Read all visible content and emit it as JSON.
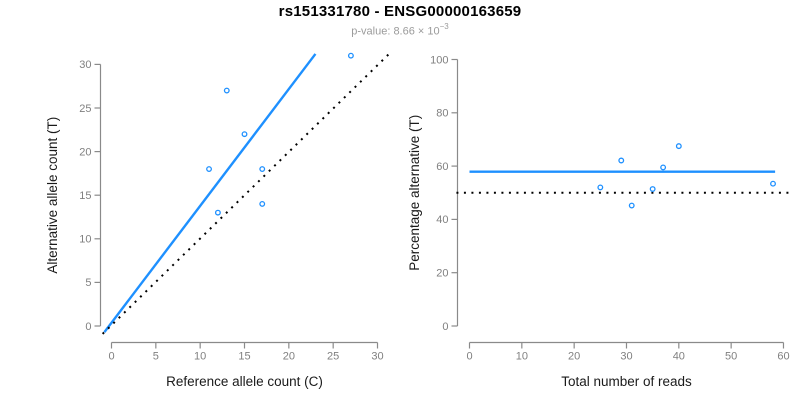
{
  "title": "rs151331780 - ENSG00000163659",
  "subtitle": {
    "text": "p-value: 8.66 × 10",
    "exponent": "−3"
  },
  "colors": {
    "accent_blue": "#1E90FF",
    "axis_line": "#8a8a8a",
    "tick_label": "#808080",
    "axis_title": "#1a1a1a",
    "title": "#000000",
    "subtitle": "#9b9b9b",
    "dotted_line": "#000000"
  },
  "chart_data": [
    {
      "type": "scatter",
      "position": "left",
      "xlabel": "Reference allele count (C)",
      "ylabel": "Alternative allele count (T)",
      "xticks": [
        0,
        5,
        10,
        15,
        20,
        25,
        30
      ],
      "yticks": [
        0,
        5,
        10,
        15,
        20,
        25,
        30
      ],
      "xlim": [
        -1.25,
        32.25
      ],
      "ylim": [
        -1.25,
        32.25
      ],
      "grid": false,
      "points": [
        [
          27,
          31
        ],
        [
          13,
          27
        ],
        [
          15,
          22
        ],
        [
          11,
          18
        ],
        [
          17,
          18
        ],
        [
          17,
          14
        ],
        [
          12,
          13
        ]
      ],
      "lines": [
        {
          "name": "fit-line",
          "style": "solid",
          "color": "blue",
          "from": [
            -0.8,
            -0.7
          ],
          "to": [
            23.0,
            31.2
          ]
        },
        {
          "name": "identity-line",
          "style": "dotted",
          "color": "black",
          "from": [
            -1.0,
            -0.9
          ],
          "to": [
            31.4,
            31.3
          ]
        }
      ]
    },
    {
      "type": "scatter",
      "position": "right",
      "xlabel": "Total number of reads",
      "ylabel": "Percentage alternative (T)",
      "xticks": [
        0,
        10,
        20,
        30,
        40,
        50,
        60
      ],
      "yticks": [
        0,
        20,
        40,
        60,
        80,
        100
      ],
      "xlim": [
        -2.5,
        62.5
      ],
      "ylim": [
        -4,
        104
      ],
      "grid": false,
      "points": [
        [
          58,
          53.4
        ],
        [
          40,
          67.5
        ],
        [
          37,
          59.5
        ],
        [
          29,
          62.1
        ],
        [
          35,
          51.4
        ],
        [
          31,
          45.2
        ],
        [
          25,
          52.0
        ]
      ],
      "lines": [
        {
          "name": "fit-line",
          "style": "solid",
          "color": "blue",
          "from": [
            0,
            57.9
          ],
          "to": [
            58.4,
            57.9
          ]
        },
        {
          "name": "reference-line",
          "style": "dotted",
          "color": "black",
          "from": [
            -2.5,
            50
          ],
          "to": [
            61.3,
            50
          ]
        }
      ]
    }
  ]
}
